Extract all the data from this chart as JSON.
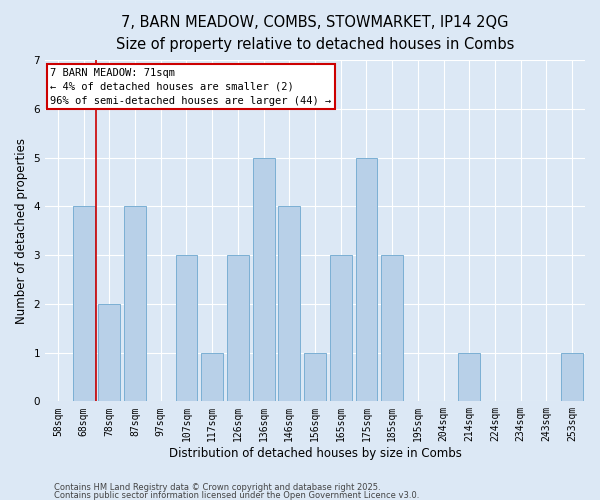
{
  "title_line1": "7, BARN MEADOW, COMBS, STOWMARKET, IP14 2QG",
  "title_line2": "Size of property relative to detached houses in Combs",
  "xlabel": "Distribution of detached houses by size in Combs",
  "ylabel": "Number of detached properties",
  "categories": [
    "58sqm",
    "68sqm",
    "78sqm",
    "87sqm",
    "97sqm",
    "107sqm",
    "117sqm",
    "126sqm",
    "136sqm",
    "146sqm",
    "156sqm",
    "165sqm",
    "175sqm",
    "185sqm",
    "195sqm",
    "204sqm",
    "214sqm",
    "224sqm",
    "234sqm",
    "243sqm",
    "253sqm"
  ],
  "values": [
    0,
    4,
    2,
    4,
    0,
    3,
    1,
    3,
    5,
    4,
    1,
    3,
    5,
    3,
    0,
    0,
    1,
    0,
    0,
    0,
    1
  ],
  "bar_color": "#b8d0e8",
  "bar_edge_color": "#7bafd4",
  "property_line_x": 1.5,
  "property_line_color": "#cc0000",
  "annotation_text": "7 BARN MEADOW: 71sqm\n← 4% of detached houses are smaller (2)\n96% of semi-detached houses are larger (44) →",
  "annotation_box_facecolor": "#ffffff",
  "annotation_box_edgecolor": "#cc0000",
  "ylim": [
    0,
    7
  ],
  "yticks": [
    0,
    1,
    2,
    3,
    4,
    5,
    6,
    7
  ],
  "bg_color": "#dce8f5",
  "plot_bg_color": "#dce8f5",
  "footer_line1": "Contains HM Land Registry data © Crown copyright and database right 2025.",
  "footer_line2": "Contains public sector information licensed under the Open Government Licence v3.0.",
  "title_fontsize": 10.5,
  "subtitle_fontsize": 9.5,
  "axis_label_fontsize": 8.5,
  "tick_fontsize": 7,
  "annotation_fontsize": 7.5,
  "footer_fontsize": 6
}
